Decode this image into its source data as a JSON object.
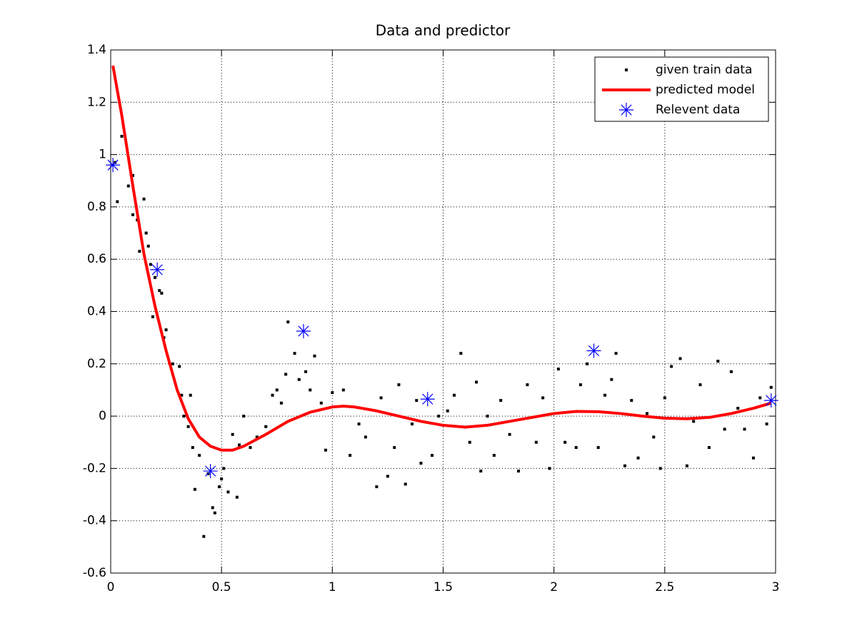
{
  "chart_data": {
    "type": "scatter",
    "title": "Data and predictor",
    "xlim": [
      0,
      3
    ],
    "ylim": [
      -0.6,
      1.4
    ],
    "xticks": [
      0,
      0.5,
      1,
      1.5,
      2,
      2.5,
      3
    ],
    "yticks": [
      -0.6,
      -0.4,
      -0.2,
      0,
      0.2,
      0.4,
      0.6,
      0.8,
      1,
      1.2,
      1.4
    ],
    "grid": true,
    "legend": "northeast",
    "series": [
      {
        "name": "given train data",
        "type": "scatter",
        "marker": "dot",
        "color": "#000000",
        "x": [
          0.02,
          0.03,
          0.05,
          0.08,
          0.1,
          0.1,
          0.12,
          0.13,
          0.15,
          0.16,
          0.17,
          0.18,
          0.19,
          0.2,
          0.22,
          0.23,
          0.24,
          0.25,
          0.28,
          0.31,
          0.32,
          0.33,
          0.35,
          0.36,
          0.37,
          0.38,
          0.4,
          0.42,
          0.44,
          0.46,
          0.47,
          0.49,
          0.5,
          0.51,
          0.53,
          0.55,
          0.57,
          0.58,
          0.6,
          0.63,
          0.66,
          0.7,
          0.73,
          0.75,
          0.77,
          0.79,
          0.8,
          0.83,
          0.85,
          0.88,
          0.9,
          0.92,
          0.95,
          0.97,
          1.0,
          1.05,
          1.08,
          1.12,
          1.15,
          1.2,
          1.22,
          1.25,
          1.28,
          1.3,
          1.33,
          1.36,
          1.38,
          1.4,
          1.45,
          1.48,
          1.52,
          1.55,
          1.58,
          1.62,
          1.65,
          1.67,
          1.7,
          1.73,
          1.76,
          1.8,
          1.84,
          1.88,
          1.92,
          1.95,
          1.98,
          2.02,
          2.05,
          2.1,
          2.12,
          2.15,
          2.2,
          2.23,
          2.26,
          2.28,
          2.32,
          2.35,
          2.38,
          2.42,
          2.45,
          2.48,
          2.5,
          2.53,
          2.57,
          2.6,
          2.63,
          2.66,
          2.7,
          2.74,
          2.77,
          2.8,
          2.83,
          2.86,
          2.9,
          2.93,
          2.96,
          2.98
        ],
        "values": [
          0.97,
          0.82,
          1.07,
          0.88,
          0.92,
          0.77,
          0.75,
          0.63,
          0.83,
          0.7,
          0.65,
          0.58,
          0.38,
          0.53,
          0.48,
          0.47,
          0.3,
          0.33,
          0.2,
          0.19,
          0.08,
          0.0,
          -0.04,
          0.08,
          -0.12,
          -0.28,
          -0.15,
          -0.46,
          -0.22,
          -0.35,
          -0.37,
          -0.27,
          -0.24,
          -0.2,
          -0.29,
          -0.07,
          -0.31,
          -0.11,
          0.0,
          -0.12,
          -0.08,
          -0.04,
          0.08,
          0.1,
          0.05,
          0.16,
          0.36,
          0.24,
          0.14,
          0.17,
          0.1,
          0.23,
          0.05,
          -0.13,
          0.09,
          0.1,
          -0.15,
          -0.03,
          -0.08,
          -0.27,
          0.07,
          -0.23,
          -0.12,
          0.12,
          -0.26,
          -0.03,
          0.06,
          -0.18,
          -0.15,
          0.0,
          0.02,
          0.08,
          0.24,
          -0.1,
          0.13,
          -0.21,
          0.0,
          -0.15,
          0.06,
          -0.07,
          -0.21,
          0.12,
          -0.1,
          0.07,
          -0.2,
          0.18,
          -0.1,
          -0.12,
          0.12,
          0.2,
          -0.12,
          0.08,
          0.14,
          0.24,
          -0.19,
          0.06,
          -0.16,
          0.01,
          -0.08,
          -0.2,
          0.07,
          0.19,
          0.22,
          -0.19,
          -0.02,
          0.12,
          -0.12,
          0.21,
          -0.05,
          0.17,
          0.03,
          -0.05,
          -0.16,
          0.07,
          -0.03,
          0.11
        ]
      },
      {
        "name": "predicted model",
        "type": "line",
        "color": "#ff0000",
        "x": [
          0.01,
          0.05,
          0.1,
          0.15,
          0.2,
          0.25,
          0.3,
          0.35,
          0.4,
          0.45,
          0.5,
          0.55,
          0.6,
          0.7,
          0.8,
          0.9,
          1.0,
          1.05,
          1.1,
          1.2,
          1.3,
          1.4,
          1.5,
          1.6,
          1.7,
          1.8,
          1.9,
          2.0,
          2.1,
          2.2,
          2.3,
          2.4,
          2.5,
          2.6,
          2.7,
          2.8,
          2.9,
          2.98
        ],
        "values": [
          1.34,
          1.15,
          0.88,
          0.62,
          0.42,
          0.25,
          0.1,
          -0.01,
          -0.08,
          -0.115,
          -0.13,
          -0.13,
          -0.115,
          -0.07,
          -0.02,
          0.015,
          0.035,
          0.038,
          0.035,
          0.02,
          0.0,
          -0.02,
          -0.035,
          -0.042,
          -0.035,
          -0.02,
          -0.005,
          0.01,
          0.018,
          0.017,
          0.01,
          0.0,
          -0.008,
          -0.01,
          -0.005,
          0.01,
          0.03,
          0.05
        ]
      },
      {
        "name": "Relevent data",
        "type": "scatter",
        "marker": "star",
        "color": "#0000ff",
        "x": [
          0.01,
          0.21,
          0.45,
          0.87,
          1.43,
          2.18,
          2.98
        ],
        "values": [
          0.96,
          0.56,
          -0.21,
          0.325,
          0.065,
          0.25,
          0.06
        ]
      }
    ]
  }
}
